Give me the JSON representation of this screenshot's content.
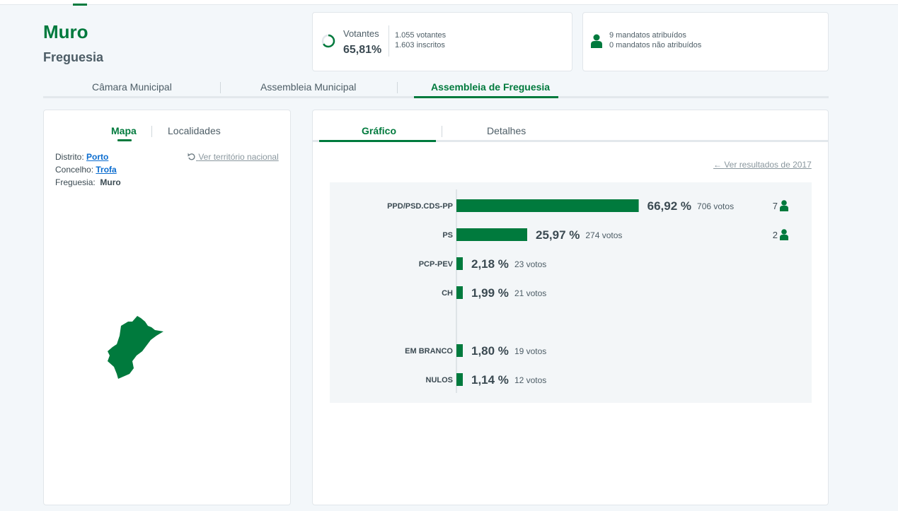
{
  "place": {
    "name": "Muro",
    "type": "Freguesia"
  },
  "turnout": {
    "label": "Votantes",
    "percent": "65,81%",
    "percent_value": 65.81,
    "voters": "1.055 votantes",
    "registered": "1.603 inscritos"
  },
  "seats": {
    "assigned": "9 mandatos atribuídos",
    "unassigned": "0 mandatos não atribuídos"
  },
  "main_tabs": {
    "camara": "Câmara Municipal",
    "assembleia_municipal": "Assembleia Municipal",
    "assembleia_freguesia": "Assembleia de Freguesia"
  },
  "left_tabs": {
    "mapa": "Mapa",
    "localidades": "Localidades"
  },
  "location": {
    "distrito_label": "Distrito:",
    "distrito": "Porto",
    "concelho_label": "Concelho:",
    "concelho": "Trofa",
    "freguesia_label": "Freguesia:",
    "freguesia": "Muro",
    "national_link": "Ver território nacional"
  },
  "right_tabs": {
    "grafico": "Gráfico",
    "detalhes": "Detalhes"
  },
  "previous_results_link": "Ver resultados de 2017",
  "colors": {
    "accent": "#007a3d",
    "link": "#0a6ccf"
  },
  "chart_data": {
    "type": "bar",
    "orientation": "horizontal",
    "categories": [
      "PPD/PSD.CDS-PP",
      "PS",
      "PCP-PEV",
      "CH",
      "EM BRANCO",
      "NULOS"
    ],
    "values": [
      66.92,
      25.97,
      2.18,
      1.99,
      1.8,
      1.14
    ],
    "percent_labels": [
      "66,92 %",
      "25,97 %",
      "2,18 %",
      "1,99 %",
      "1,80 %",
      "1,14 %"
    ],
    "votes_labels": [
      "706 votos",
      "274 votos",
      "23 votos",
      "21 votos",
      "19 votos",
      "12 votos"
    ],
    "seats": [
      "7",
      "2",
      "",
      "",
      "",
      ""
    ]
  }
}
